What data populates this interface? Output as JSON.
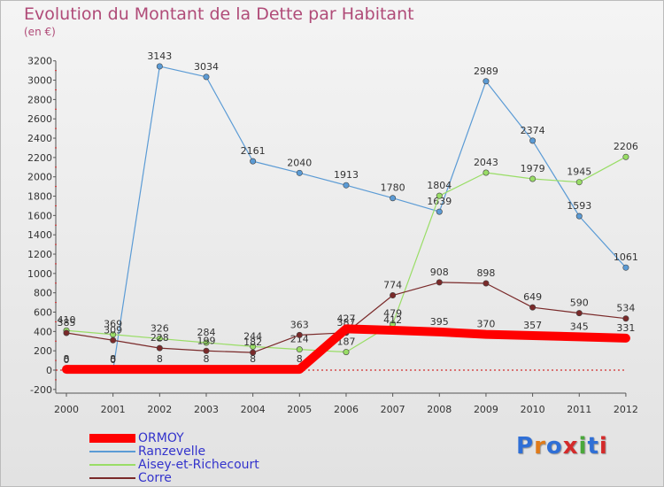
{
  "title": "Evolution du Montant de la Dette par Habitant",
  "unit": "(en €)",
  "logo": {
    "text": "Proxiti",
    "letter_colors": [
      "#2f6fd6",
      "#e07b1a",
      "#2f6fd6",
      "#d42a2a",
      "#4aa83b",
      "#2f6fd6",
      "#d42a2a"
    ]
  },
  "chart_data": {
    "type": "line",
    "x": [
      "2000",
      "2001",
      "2002",
      "2003",
      "2004",
      "2005",
      "2006",
      "2007",
      "2008",
      "2009",
      "2010",
      "2011",
      "2012"
    ],
    "ylim": [
      -200,
      3200
    ],
    "yticks": [
      -200,
      0,
      200,
      400,
      600,
      800,
      1000,
      1200,
      1400,
      1600,
      1800,
      2000,
      2200,
      2400,
      2600,
      2800,
      3000,
      3200
    ],
    "grid": false,
    "legend_position": "bottom-left",
    "series": [
      {
        "name": "ORMOY",
        "color": "#ff0000",
        "values": [
          8,
          8,
          8,
          8,
          8,
          8,
          427,
          412,
          395,
          370,
          357,
          345,
          331
        ],
        "labels": [
          "8",
          "8",
          "8",
          "8",
          "8",
          "8",
          "427",
          "412",
          "395",
          "370",
          "357",
          "345",
          "331"
        ]
      },
      {
        "name": "Ranzevelle",
        "color": "#5b9bd5",
        "values": [
          0,
          0,
          3143,
          3034,
          2161,
          2040,
          1913,
          1780,
          1639,
          2989,
          2374,
          1593,
          1061
        ],
        "labels": [
          "0",
          "0",
          "3143",
          "3034",
          "2161",
          "2040",
          "1913",
          "1780",
          "1639",
          "2989",
          "2374",
          "1593",
          "1061"
        ]
      },
      {
        "name": "Aisey-et-Richecourt",
        "color": "#99dd66",
        "values": [
          410,
          369,
          326,
          284,
          244,
          214,
          187,
          479,
          1804,
          2043,
          1979,
          1945,
          2206
        ],
        "labels": [
          "410",
          "369",
          "326",
          "284",
          "244",
          "214",
          "187",
          "479",
          "1804",
          "2043",
          "1979",
          "1945",
          "2206"
        ]
      },
      {
        "name": "Corre",
        "color": "#7a2a2a",
        "values": [
          385,
          309,
          228,
          199,
          182,
          363,
          387,
          774,
          908,
          898,
          649,
          590,
          534
        ],
        "labels": [
          "385",
          "309",
          "228",
          "199",
          "182",
          "363",
          "387",
          "774",
          "908",
          "898",
          "649",
          "590",
          "534"
        ]
      }
    ]
  }
}
